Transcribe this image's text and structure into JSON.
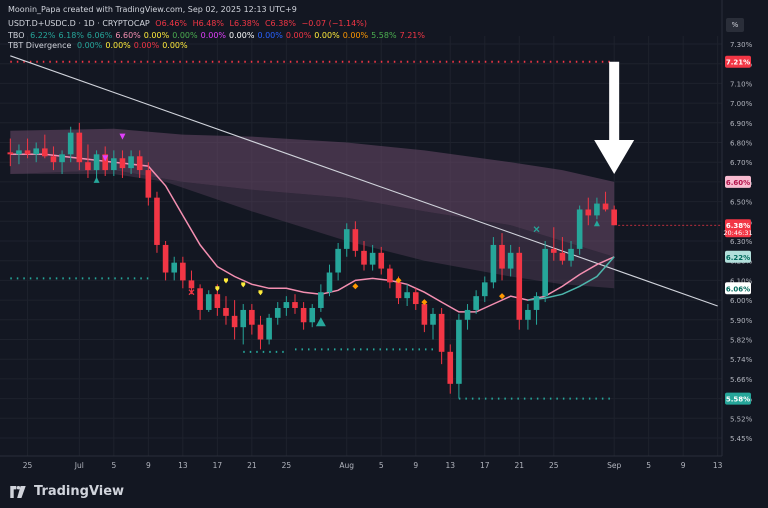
{
  "header": {
    "line1": "Moonin_Papa created with TradingView.com, Sep 02, 2025 12:13 UTC+9",
    "symbol": "USDT.D+USDC.D · 1D · CRYPTOCAP",
    "ohlc": [
      "O6.46%",
      "H6.48%",
      "L6.38%",
      "C6.38%",
      "−0.07 (−1.14%)"
    ],
    "tbo_label": "TBO",
    "tbo_values": [
      "6.22%",
      "6.18%",
      "6.06%",
      "6.60%",
      "0.00%",
      "0.00%",
      "0.00%",
      "0.00%",
      "0.00%",
      "0.00%",
      "0.00%",
      "0.00%",
      "5.58%",
      "7.21%"
    ],
    "div_label": "TBT Divergence",
    "div_values": [
      "0.00%",
      "0.00%",
      "0.00%",
      "0.00%"
    ]
  },
  "axis_unit": "%",
  "footer_brand": "TradingView",
  "colors": {
    "background": "#131722",
    "up": "#26a69a",
    "down": "#f23645",
    "pink_line": "#f48fb1",
    "teal_line": "#4db6ac",
    "band": "#6b4a6a",
    "dot_red": "#f23645",
    "dot_green": "#26a69a",
    "trend": "#d1d4dc",
    "arrow": "#ffffff"
  },
  "price_tags": [
    {
      "label": "7.21%",
      "value": 7.21,
      "bg": "#f23645",
      "fg": "#ffffff"
    },
    {
      "label": "6.60%",
      "value": 6.6,
      "bg": "#f8bbd0",
      "fg": "#b3124a"
    },
    {
      "label": "6.38%",
      "value": 6.38,
      "bg": "#f23645",
      "fg": "#ffffff",
      "sub": "20:46:31"
    },
    {
      "label": "6.22%",
      "value": 6.22,
      "bg": "#b2dfdb",
      "fg": "#00695c"
    },
    {
      "label": "6.06%",
      "value": 6.06,
      "bg": "#ffffff",
      "fg": "#00695c"
    },
    {
      "label": "5.58%",
      "value": 5.58,
      "bg": "#26a69a",
      "fg": "#ffffff"
    }
  ],
  "chart_data": {
    "type": "candlestick",
    "title": "USDT.D+USDC.D · 1D · CRYPTOCAP",
    "ylim": [
      5.43,
      7.34
    ],
    "y_ticks": [
      "7.30%",
      "7.20%",
      "7.10%",
      "7.00%",
      "6.90%",
      "6.80%",
      "6.70%",
      "6.60%",
      "6.50%",
      "6.40%",
      "6.30%",
      "6.20%",
      "6.10%",
      "6.00%",
      "5.90%",
      "5.82%",
      "5.74%",
      "5.66%",
      "5.58%",
      "5.52%",
      "5.45%"
    ],
    "y_tick_values": [
      7.3,
      7.2,
      7.1,
      7.0,
      6.9,
      6.8,
      6.7,
      6.6,
      6.5,
      6.4,
      6.3,
      6.2,
      6.1,
      6.0,
      5.9,
      5.82,
      5.74,
      5.66,
      5.58,
      5.52,
      5.45
    ],
    "x_ticks": [
      "25",
      "Jul",
      "5",
      "9",
      "13",
      "17",
      "21",
      "25",
      "Aug",
      "5",
      "9",
      "13",
      "17",
      "21",
      "25",
      "Sep",
      "5",
      "9",
      "13"
    ],
    "x_tick_days": [
      -6,
      0,
      4,
      8,
      12,
      16,
      20,
      24,
      31,
      35,
      39,
      43,
      47,
      51,
      55,
      62,
      66,
      70,
      74
    ],
    "x_range": [
      -8.5,
      74.5
    ],
    "candles": [
      {
        "d": -8,
        "o": 6.75,
        "h": 6.82,
        "l": 6.68,
        "c": 6.74
      },
      {
        "d": -7,
        "o": 6.74,
        "h": 6.79,
        "l": 6.69,
        "c": 6.76
      },
      {
        "d": -6,
        "o": 6.76,
        "h": 6.82,
        "l": 6.72,
        "c": 6.74
      },
      {
        "d": -5,
        "o": 6.74,
        "h": 6.8,
        "l": 6.7,
        "c": 6.77
      },
      {
        "d": -4,
        "o": 6.77,
        "h": 6.84,
        "l": 6.72,
        "c": 6.73
      },
      {
        "d": -3,
        "o": 6.73,
        "h": 6.78,
        "l": 6.66,
        "c": 6.7
      },
      {
        "d": -2,
        "o": 6.7,
        "h": 6.76,
        "l": 6.64,
        "c": 6.74
      },
      {
        "d": -1,
        "o": 6.74,
        "h": 6.88,
        "l": 6.7,
        "c": 6.85
      },
      {
        "d": 0,
        "o": 6.85,
        "h": 6.9,
        "l": 6.66,
        "c": 6.7
      },
      {
        "d": 1,
        "o": 6.7,
        "h": 6.79,
        "l": 6.62,
        "c": 6.66
      },
      {
        "d": 2,
        "o": 6.66,
        "h": 6.76,
        "l": 6.6,
        "c": 6.74
      },
      {
        "d": 3,
        "o": 6.74,
        "h": 6.78,
        "l": 6.63,
        "c": 6.66
      },
      {
        "d": 4,
        "o": 6.66,
        "h": 6.76,
        "l": 6.63,
        "c": 6.72
      },
      {
        "d": 5,
        "o": 6.72,
        "h": 6.76,
        "l": 6.62,
        "c": 6.67
      },
      {
        "d": 6,
        "o": 6.67,
        "h": 6.76,
        "l": 6.64,
        "c": 6.73
      },
      {
        "d": 7,
        "o": 6.73,
        "h": 6.76,
        "l": 6.62,
        "c": 6.66
      },
      {
        "d": 8,
        "o": 6.66,
        "h": 6.7,
        "l": 6.48,
        "c": 6.52
      },
      {
        "d": 9,
        "o": 6.52,
        "h": 6.55,
        "l": 6.24,
        "c": 6.28
      },
      {
        "d": 10,
        "o": 6.28,
        "h": 6.3,
        "l": 6.1,
        "c": 6.14
      },
      {
        "d": 11,
        "o": 6.14,
        "h": 6.22,
        "l": 6.1,
        "c": 6.19
      },
      {
        "d": 12,
        "o": 6.19,
        "h": 6.22,
        "l": 6.06,
        "c": 6.1
      },
      {
        "d": 13,
        "o": 6.1,
        "h": 6.15,
        "l": 6.03,
        "c": 6.06
      },
      {
        "d": 14,
        "o": 6.06,
        "h": 6.08,
        "l": 5.9,
        "c": 5.95
      },
      {
        "d": 15,
        "o": 5.95,
        "h": 6.05,
        "l": 5.94,
        "c": 6.03
      },
      {
        "d": 16,
        "o": 6.03,
        "h": 6.08,
        "l": 5.92,
        "c": 5.96
      },
      {
        "d": 17,
        "o": 5.96,
        "h": 6.02,
        "l": 5.88,
        "c": 5.92
      },
      {
        "d": 18,
        "o": 5.92,
        "h": 6.0,
        "l": 5.82,
        "c": 5.87
      },
      {
        "d": 19,
        "o": 5.87,
        "h": 5.98,
        "l": 5.8,
        "c": 5.95
      },
      {
        "d": 20,
        "o": 5.95,
        "h": 5.98,
        "l": 5.84,
        "c": 5.88
      },
      {
        "d": 21,
        "o": 5.88,
        "h": 5.92,
        "l": 5.78,
        "c": 5.82
      },
      {
        "d": 22,
        "o": 5.82,
        "h": 5.93,
        "l": 5.8,
        "c": 5.91
      },
      {
        "d": 23,
        "o": 5.91,
        "h": 5.99,
        "l": 5.88,
        "c": 5.96
      },
      {
        "d": 24,
        "o": 5.96,
        "h": 6.02,
        "l": 5.92,
        "c": 5.99
      },
      {
        "d": 25,
        "o": 5.99,
        "h": 6.03,
        "l": 5.93,
        "c": 5.96
      },
      {
        "d": 26,
        "o": 5.96,
        "h": 5.99,
        "l": 5.86,
        "c": 5.89
      },
      {
        "d": 27,
        "o": 5.89,
        "h": 5.98,
        "l": 5.87,
        "c": 5.96
      },
      {
        "d": 28,
        "o": 5.96,
        "h": 6.08,
        "l": 5.94,
        "c": 6.04
      },
      {
        "d": 29,
        "o": 6.04,
        "h": 6.18,
        "l": 6.02,
        "c": 6.14
      },
      {
        "d": 30,
        "o": 6.14,
        "h": 6.29,
        "l": 6.1,
        "c": 6.26
      },
      {
        "d": 31,
        "o": 6.26,
        "h": 6.39,
        "l": 6.22,
        "c": 6.36
      },
      {
        "d": 32,
        "o": 6.36,
        "h": 6.4,
        "l": 6.22,
        "c": 6.25
      },
      {
        "d": 33,
        "o": 6.25,
        "h": 6.3,
        "l": 6.15,
        "c": 6.18
      },
      {
        "d": 34,
        "o": 6.18,
        "h": 6.28,
        "l": 6.15,
        "c": 6.24
      },
      {
        "d": 35,
        "o": 6.24,
        "h": 6.27,
        "l": 6.13,
        "c": 6.16
      },
      {
        "d": 36,
        "o": 6.16,
        "h": 6.18,
        "l": 6.06,
        "c": 6.09
      },
      {
        "d": 37,
        "o": 6.09,
        "h": 6.12,
        "l": 5.98,
        "c": 6.01
      },
      {
        "d": 38,
        "o": 6.01,
        "h": 6.08,
        "l": 5.97,
        "c": 6.04
      },
      {
        "d": 39,
        "o": 6.04,
        "h": 6.06,
        "l": 5.95,
        "c": 5.98
      },
      {
        "d": 40,
        "o": 5.98,
        "h": 6.0,
        "l": 5.85,
        "c": 5.88
      },
      {
        "d": 41,
        "o": 5.88,
        "h": 5.96,
        "l": 5.82,
        "c": 5.93
      },
      {
        "d": 42,
        "o": 5.93,
        "h": 5.96,
        "l": 5.72,
        "c": 5.77
      },
      {
        "d": 43,
        "o": 5.77,
        "h": 5.8,
        "l": 5.6,
        "c": 5.64
      },
      {
        "d": 44,
        "o": 5.64,
        "h": 5.93,
        "l": 5.58,
        "c": 5.9
      },
      {
        "d": 45,
        "o": 5.9,
        "h": 5.98,
        "l": 5.86,
        "c": 5.95
      },
      {
        "d": 46,
        "o": 5.95,
        "h": 6.05,
        "l": 5.93,
        "c": 6.02
      },
      {
        "d": 47,
        "o": 6.02,
        "h": 6.12,
        "l": 5.99,
        "c": 6.09
      },
      {
        "d": 48,
        "o": 6.09,
        "h": 6.32,
        "l": 6.06,
        "c": 6.28
      },
      {
        "d": 49,
        "o": 6.28,
        "h": 6.34,
        "l": 6.1,
        "c": 6.16
      },
      {
        "d": 50,
        "o": 6.16,
        "h": 6.28,
        "l": 6.12,
        "c": 6.24
      },
      {
        "d": 51,
        "o": 6.24,
        "h": 6.27,
        "l": 5.86,
        "c": 5.9
      },
      {
        "d": 52,
        "o": 5.9,
        "h": 5.98,
        "l": 5.86,
        "c": 5.95
      },
      {
        "d": 53,
        "o": 5.95,
        "h": 6.04,
        "l": 5.88,
        "c": 6.02
      },
      {
        "d": 54,
        "o": 6.02,
        "h": 6.3,
        "l": 5.99,
        "c": 6.26
      },
      {
        "d": 55,
        "o": 6.26,
        "h": 6.37,
        "l": 6.2,
        "c": 6.24
      },
      {
        "d": 56,
        "o": 6.24,
        "h": 6.32,
        "l": 6.18,
        "c": 6.2
      },
      {
        "d": 57,
        "o": 6.2,
        "h": 6.3,
        "l": 6.17,
        "c": 6.26
      },
      {
        "d": 58,
        "o": 6.26,
        "h": 6.48,
        "l": 6.23,
        "c": 6.46
      },
      {
        "d": 59,
        "o": 6.46,
        "h": 6.52,
        "l": 6.38,
        "c": 6.43
      },
      {
        "d": 60,
        "o": 6.43,
        "h": 6.52,
        "l": 6.41,
        "c": 6.49
      },
      {
        "d": 61,
        "o": 6.49,
        "h": 6.55,
        "l": 6.45,
        "c": 6.46
      },
      {
        "d": 62,
        "o": 6.46,
        "h": 6.48,
        "l": 6.38,
        "c": 6.38
      }
    ],
    "upper_band_top": [
      [
        -8,
        6.86
      ],
      [
        4,
        6.87
      ],
      [
        12,
        6.84
      ],
      [
        20,
        6.83
      ],
      [
        31,
        6.8
      ],
      [
        40,
        6.76
      ],
      [
        50,
        6.7
      ],
      [
        56,
        6.66
      ],
      [
        62,
        6.6
      ]
    ],
    "upper_band_bottom": [
      [
        -8,
        6.64
      ],
      [
        4,
        6.66
      ],
      [
        12,
        6.6
      ],
      [
        20,
        6.56
      ],
      [
        31,
        6.52
      ],
      [
        40,
        6.45
      ],
      [
        50,
        6.38
      ],
      [
        56,
        6.3
      ],
      [
        62,
        6.22
      ]
    ],
    "lower_band_bottom": [
      [
        -8,
        6.64
      ],
      [
        4,
        6.64
      ],
      [
        10,
        6.6
      ],
      [
        20,
        6.45
      ],
      [
        31,
        6.3
      ],
      [
        40,
        6.2
      ],
      [
        50,
        6.12
      ],
      [
        56,
        6.08
      ],
      [
        62,
        6.06
      ]
    ],
    "pink_line": [
      [
        -8,
        6.74
      ],
      [
        -4,
        6.74
      ],
      [
        0,
        6.72
      ],
      [
        4,
        6.7
      ],
      [
        8,
        6.68
      ],
      [
        10,
        6.58
      ],
      [
        12,
        6.43
      ],
      [
        14,
        6.28
      ],
      [
        16,
        6.17
      ],
      [
        18,
        6.12
      ],
      [
        20,
        6.08
      ],
      [
        22,
        6.06
      ],
      [
        24,
        6.06
      ],
      [
        26,
        6.04
      ],
      [
        28,
        6.03
      ],
      [
        30,
        6.05
      ],
      [
        32,
        6.1
      ],
      [
        34,
        6.11
      ],
      [
        36,
        6.1
      ],
      [
        38,
        6.08
      ],
      [
        40,
        6.04
      ],
      [
        42,
        5.99
      ],
      [
        44,
        5.94
      ],
      [
        46,
        5.94
      ],
      [
        48,
        5.98
      ],
      [
        50,
        6.02
      ],
      [
        52,
        6.0
      ],
      [
        54,
        6.02
      ],
      [
        56,
        6.07
      ],
      [
        58,
        6.13
      ],
      [
        60,
        6.18
      ],
      [
        62,
        6.22
      ]
    ],
    "teal_line": [
      [
        52,
        6.0
      ],
      [
        54,
        6.01
      ],
      [
        56,
        6.03
      ],
      [
        58,
        6.07
      ],
      [
        60,
        6.12
      ],
      [
        62,
        6.22
      ]
    ],
    "trend_line": [
      [
        -8,
        7.24
      ],
      [
        74,
        5.97
      ]
    ],
    "dotted_levels": [
      {
        "value": 7.21,
        "from": -8,
        "to": 62,
        "color": "red"
      },
      {
        "value": 6.11,
        "from": -8,
        "to": 8,
        "color": "green"
      },
      {
        "value": 5.77,
        "from": 19,
        "to": 24,
        "color": "green"
      },
      {
        "value": 5.78,
        "from": 25,
        "to": 41,
        "color": "green"
      },
      {
        "value": 5.58,
        "from": 44,
        "to": 62,
        "color": "green"
      }
    ],
    "markers": [
      {
        "d": 2,
        "v": 6.61,
        "shape": "tri-up",
        "color": "up"
      },
      {
        "d": 3,
        "v": 6.72,
        "shape": "tri-down",
        "color": "purple"
      },
      {
        "d": 5,
        "v": 6.83,
        "shape": "tri-down",
        "color": "purple"
      },
      {
        "d": 16,
        "v": 6.06,
        "shape": "dot",
        "color": "yellow"
      },
      {
        "d": 17,
        "v": 6.1,
        "shape": "dot",
        "color": "yellow"
      },
      {
        "d": 19,
        "v": 6.08,
        "shape": "dot",
        "color": "yellow"
      },
      {
        "d": 21,
        "v": 6.04,
        "shape": "dot",
        "color": "yellow"
      },
      {
        "d": 13,
        "v": 6.04,
        "shape": "x",
        "color": "down"
      },
      {
        "d": 28,
        "v": 5.89,
        "shape": "tri-up-big",
        "color": "up"
      },
      {
        "d": 32,
        "v": 6.07,
        "shape": "diamond",
        "color": "orange"
      },
      {
        "d": 37,
        "v": 6.1,
        "shape": "diamond",
        "color": "orange"
      },
      {
        "d": 40,
        "v": 5.99,
        "shape": "diamond",
        "color": "orange"
      },
      {
        "d": 49,
        "v": 6.02,
        "shape": "diamond",
        "color": "orange"
      },
      {
        "d": 53,
        "v": 6.36,
        "shape": "x",
        "color": "up"
      },
      {
        "d": 60,
        "v": 6.39,
        "shape": "tri-up",
        "color": "up"
      }
    ],
    "arrow": {
      "d": 62,
      "from": 7.21,
      "to": 6.64
    }
  }
}
